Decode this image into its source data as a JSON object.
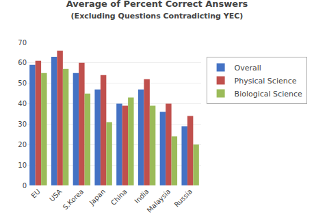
{
  "chart_data": {
    "type": "bar",
    "title": "Average of Percent Correct Answers",
    "subtitle": "(Excluding Questions Contradicting YEC)",
    "categories": [
      "EU",
      "USA",
      "S.Korea",
      "Japan",
      "China",
      "India",
      "Malaysia",
      "Russia"
    ],
    "series": [
      {
        "name": "Overall",
        "color": "#4472C4",
        "values": [
          59,
          63,
          55,
          47,
          40,
          47,
          36,
          29
        ]
      },
      {
        "name": "Physical Science",
        "color": "#C0504D",
        "values": [
          61,
          66,
          60,
          54,
          39,
          52,
          40,
          34
        ]
      },
      {
        "name": "Biological Science",
        "color": "#9BBB59",
        "values": [
          55,
          57,
          45,
          31,
          43,
          39,
          24,
          20
        ]
      }
    ],
    "ylim": [
      0,
      70
    ],
    "yticks": [
      0,
      10,
      20,
      30,
      40,
      50,
      60,
      70
    ],
    "grid": true,
    "legend": "right"
  }
}
